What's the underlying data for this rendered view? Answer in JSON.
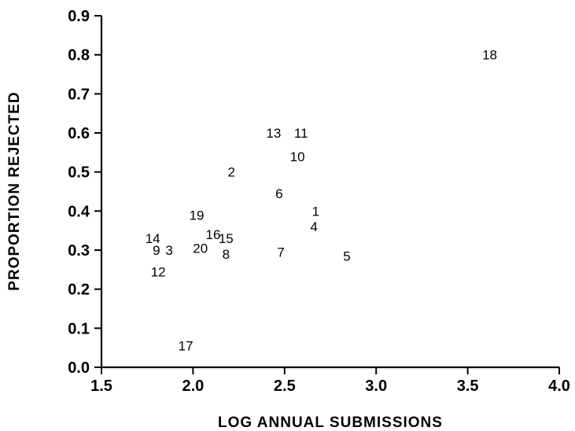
{
  "chart_data": {
    "type": "scatter",
    "title": "",
    "xlabel": "LOG ANNUAL SUBMISSIONS",
    "ylabel": "PROPORTION REJECTED",
    "xlim": [
      1.5,
      4.0
    ],
    "ylim": [
      0.0,
      0.9
    ],
    "x_ticks": [
      "1.5",
      "2.0",
      "2.5",
      "3.0",
      "3.5",
      "4.0"
    ],
    "y_ticks": [
      "0.0",
      "0.1",
      "0.2",
      "0.3",
      "0.4",
      "0.5",
      "0.6",
      "0.7",
      "0.8",
      "0.9"
    ],
    "grid": false,
    "marker": "numeric labels",
    "points": [
      {
        "label": "1",
        "x": 2.67,
        "y": 0.4
      },
      {
        "label": "2",
        "x": 2.21,
        "y": 0.5
      },
      {
        "label": "3",
        "x": 1.87,
        "y": 0.3
      },
      {
        "label": "4",
        "x": 2.66,
        "y": 0.36
      },
      {
        "label": "5",
        "x": 2.84,
        "y": 0.285
      },
      {
        "label": "6",
        "x": 2.47,
        "y": 0.445
      },
      {
        "label": "7",
        "x": 2.48,
        "y": 0.295
      },
      {
        "label": "8",
        "x": 2.18,
        "y": 0.29
      },
      {
        "label": "9",
        "x": 1.8,
        "y": 0.3
      },
      {
        "label": "10",
        "x": 2.57,
        "y": 0.54
      },
      {
        "label": "11",
        "x": 2.59,
        "y": 0.6
      },
      {
        "label": "12",
        "x": 1.81,
        "y": 0.245
      },
      {
        "label": "13",
        "x": 2.44,
        "y": 0.6
      },
      {
        "label": "14",
        "x": 1.78,
        "y": 0.33
      },
      {
        "label": "15",
        "x": 2.18,
        "y": 0.33
      },
      {
        "label": "16",
        "x": 2.11,
        "y": 0.34
      },
      {
        "label": "17",
        "x": 1.96,
        "y": 0.055
      },
      {
        "label": "18",
        "x": 3.62,
        "y": 0.8
      },
      {
        "label": "19",
        "x": 2.02,
        "y": 0.39
      },
      {
        "label": "20",
        "x": 2.04,
        "y": 0.305
      }
    ]
  }
}
